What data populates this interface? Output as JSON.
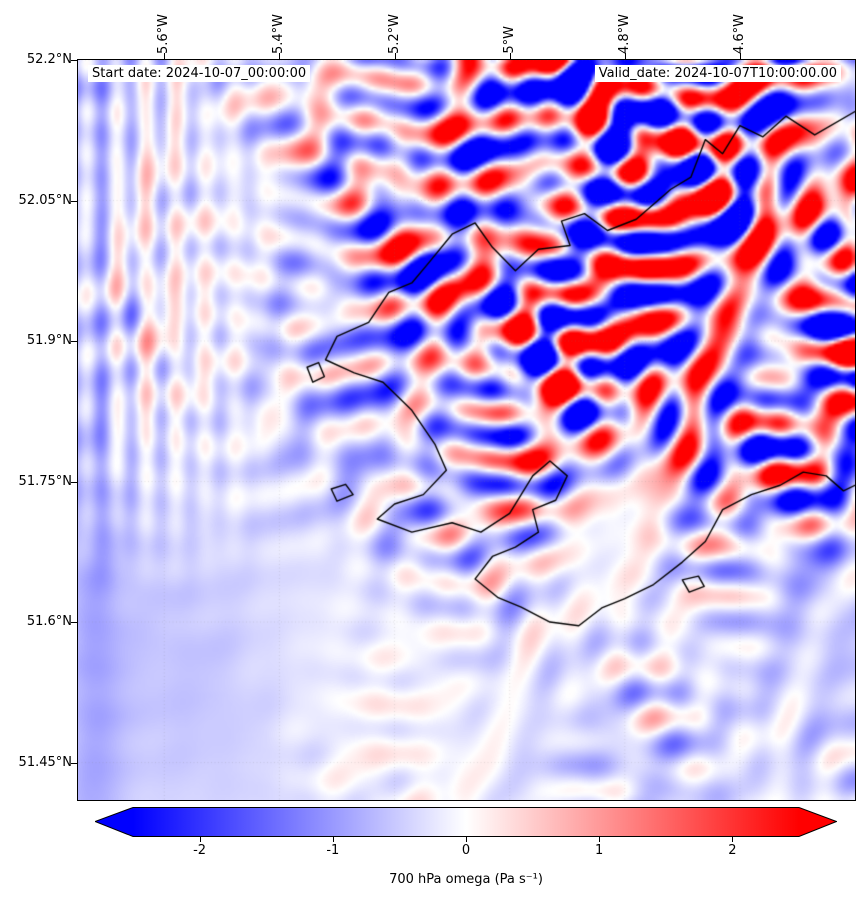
{
  "chart_data": {
    "type": "heatmap",
    "title": "",
    "annotations": {
      "start_date": "Start date: 2024-10-07_00:00:00",
      "valid_date": "Valid_date: 2024-10-07T10:00:00.00"
    },
    "x_axis": {
      "position": "top",
      "tick_rotation": 90,
      "range_deg_east": [
        -5.75,
        -4.4
      ],
      "tick_values": [
        -5.6,
        -5.4,
        -5.2,
        -5.0,
        -4.8,
        -4.6
      ],
      "tick_labels": [
        "5.6°W",
        "5.4°W",
        "5.2°W",
        "5°W",
        "4.8°W",
        "4.6°W"
      ]
    },
    "y_axis": {
      "range_deg_north": [
        51.41,
        52.2
      ],
      "tick_values": [
        52.2,
        52.05,
        51.9,
        51.75,
        51.6,
        51.45
      ],
      "tick_labels": [
        "52.2°N",
        "52.05°N",
        "51.9°N",
        "51.75°N",
        "51.6°N",
        "51.45°N"
      ]
    },
    "grid": {
      "visible": true,
      "style": "dotted",
      "color": "#808080"
    },
    "colorbar": {
      "label": "700 hPa omega (Pa s⁻¹)",
      "orientation": "horizontal",
      "vmin": -2.5,
      "vmax": 2.5,
      "extend": "both",
      "tick_values": [
        -2,
        -1,
        0,
        1,
        2
      ],
      "tick_labels": [
        "-2",
        "-1",
        "0",
        "1",
        "2"
      ],
      "cmap_name": "bwr",
      "cmap_stops": [
        {
          "offset": 0,
          "color": "#0000ff"
        },
        {
          "offset": 0.5,
          "color": "#ffffff"
        },
        {
          "offset": 1,
          "color": "#ff0000"
        }
      ]
    },
    "field_units": "Pa s⁻¹",
    "field_summary": "700 hPa vertical velocity (omega) over southwest Wales at 10 UTC 7 Oct 2024: quasi-periodic gravity-wave bands of descent (red, positive) and ascent (blue, negative) saturating beyond ±2.5 Pa/s in the northeast half of the domain; weak smooth negative (pale blue) background over the sea to the west and south, with faint fine-scale striping near the western inflow boundary.",
    "field_synthesis": {
      "clamp": 2.5,
      "gain": 3.2,
      "envelope": {
        "x0": 0.18,
        "x1": 0.62,
        "xmin": 0.1,
        "y0": 0.3,
        "y1": 0.78,
        "ymin": 0.12
      },
      "waves": [
        {
          "kx": 2.0,
          "ky": 13.0,
          "amp": 1.1,
          "phase": 0.7,
          "mod": 0
        },
        {
          "kx": 6.5,
          "ky": 9.0,
          "amp": 0.9,
          "phase": 2.1,
          "mod": 1
        },
        {
          "kx": 11.0,
          "ky": 4.0,
          "amp": 0.85,
          "phase": 4.0,
          "mod": 2
        },
        {
          "kx": -3.5,
          "ky": 16.5,
          "amp": 0.7,
          "phase": 1.3,
          "mod": 3
        },
        {
          "kx": 17.0,
          "ky": 2.0,
          "amp": 0.5,
          "phase": 5.2,
          "mod": 1
        }
      ],
      "modulators": [
        {
          "kx": 3.1,
          "ky": 1.7,
          "phase": 2.9
        },
        {
          "kx": 1.9,
          "ky": -2.6,
          "phase": 0.4
        },
        {
          "kx": 5.3,
          "ky": 0.9,
          "phase": 3.6
        },
        {
          "kx": 2.5,
          "ky": 1.2,
          "phase": 1.8
        }
      ],
      "left_stripes": {
        "k": 26,
        "amp": 0.5,
        "center": 0.07,
        "sigma": 0.09,
        "y0": 0.45,
        "y1": 0.75
      },
      "edge_band": {
        "center": 0.018,
        "sigma": 0.028,
        "amp": 0.5
      },
      "background": {
        "base": -0.28,
        "comps": [
          {
            "kx": 1.3,
            "ky": 0.8,
            "amp": 0.18,
            "phase": 5.8
          },
          {
            "kx": 2.2,
            "ky": -1.1,
            "amp": 0.12,
            "phase": 2.4
          }
        ]
      }
    },
    "coastlines": {
      "color": "#000000",
      "lines": [
        [
          [
            -4.4,
            52.145
          ],
          [
            -4.47,
            52.12
          ],
          [
            -4.52,
            52.14
          ],
          [
            -4.56,
            52.118
          ],
          [
            -4.6,
            52.13
          ],
          [
            -4.63,
            52.1
          ],
          [
            -4.66,
            52.115
          ],
          [
            -4.685,
            52.075
          ],
          [
            -4.72,
            52.062
          ],
          [
            -4.78,
            52.03
          ],
          [
            -4.83,
            52.018
          ],
          [
            -4.87,
            52.036
          ],
          [
            -4.91,
            52.028
          ],
          [
            -4.895,
            52.002
          ],
          [
            -4.95,
            51.998
          ],
          [
            -4.99,
            51.975
          ],
          [
            -5.03,
            52.0
          ],
          [
            -5.06,
            52.026
          ],
          [
            -5.1,
            52.014
          ],
          [
            -5.14,
            51.984
          ],
          [
            -5.17,
            51.962
          ],
          [
            -5.21,
            51.952
          ],
          [
            -5.245,
            51.92
          ],
          [
            -5.3,
            51.905
          ],
          [
            -5.32,
            51.88
          ],
          [
            -5.27,
            51.866
          ],
          [
            -5.22,
            51.856
          ],
          [
            -5.17,
            51.826
          ],
          [
            -5.13,
            51.79
          ],
          [
            -5.11,
            51.762
          ],
          [
            -5.15,
            51.736
          ],
          [
            -5.2,
            51.726
          ],
          [
            -5.23,
            51.71
          ],
          [
            -5.17,
            51.696
          ],
          [
            -5.1,
            51.706
          ],
          [
            -5.05,
            51.696
          ],
          [
            -5.0,
            51.716
          ],
          [
            -4.96,
            51.756
          ],
          [
            -4.93,
            51.772
          ],
          [
            -4.9,
            51.756
          ],
          [
            -4.92,
            51.73
          ],
          [
            -4.96,
            51.72
          ],
          [
            -4.95,
            51.696
          ],
          [
            -4.99,
            51.68
          ],
          [
            -5.03,
            51.67
          ],
          [
            -5.06,
            51.646
          ],
          [
            -5.02,
            51.626
          ],
          [
            -4.98,
            51.616
          ],
          [
            -4.93,
            51.6
          ],
          [
            -4.88,
            51.596
          ],
          [
            -4.84,
            51.615
          ],
          [
            -4.8,
            51.625
          ],
          [
            -4.75,
            51.64
          ],
          [
            -4.7,
            51.664
          ],
          [
            -4.66,
            51.686
          ],
          [
            -4.63,
            51.72
          ],
          [
            -4.58,
            51.736
          ],
          [
            -4.53,
            51.746
          ],
          [
            -4.49,
            51.76
          ],
          [
            -4.45,
            51.756
          ],
          [
            -4.42,
            51.74
          ],
          [
            -4.4,
            51.746
          ]
        ],
        [
          [
            -5.31,
            51.742
          ],
          [
            -5.285,
            51.747
          ],
          [
            -5.272,
            51.736
          ],
          [
            -5.3,
            51.729
          ],
          [
            -5.31,
            51.742
          ]
        ],
        [
          [
            -5.352,
            51.872
          ],
          [
            -5.332,
            51.877
          ],
          [
            -5.322,
            51.862
          ],
          [
            -5.342,
            51.856
          ],
          [
            -5.352,
            51.872
          ]
        ],
        [
          [
            -4.7,
            51.645
          ],
          [
            -4.672,
            51.649
          ],
          [
            -4.662,
            51.638
          ],
          [
            -4.688,
            51.632
          ],
          [
            -4.7,
            51.645
          ]
        ]
      ]
    }
  }
}
